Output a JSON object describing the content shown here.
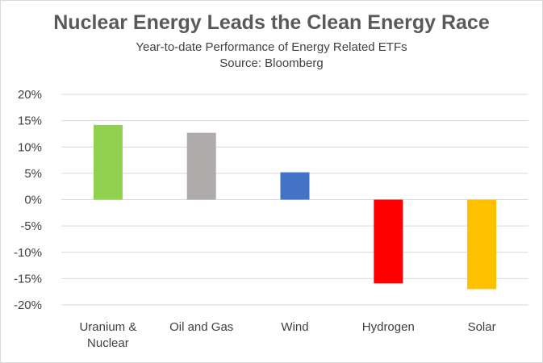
{
  "chart_data": {
    "type": "bar",
    "title": "Nuclear Energy Leads the Clean Energy Race",
    "subtitle": "Year-to-date Performance of Energy Related ETFs",
    "source": "Source: Bloomberg",
    "categories": [
      "Uranium & Nuclear",
      "Oil and Gas",
      "Wind",
      "Hydrogen",
      "Solar"
    ],
    "category_lines": [
      [
        "Uranium &",
        "Nuclear"
      ],
      [
        "Oil and Gas"
      ],
      [
        "Wind"
      ],
      [
        "Hydrogen"
      ],
      [
        "Solar"
      ]
    ],
    "values": [
      14.2,
      12.7,
      5.2,
      -15.9,
      -17.0
    ],
    "colors": [
      "#92d050",
      "#b0abab",
      "#4472c4",
      "#ff0000",
      "#ffc000"
    ],
    "ylim": [
      -20,
      20
    ],
    "yticks": [
      20,
      15,
      10,
      5,
      0,
      -5,
      -10,
      -15,
      -20
    ],
    "ytick_labels": [
      "20%",
      "15%",
      "10%",
      "5%",
      "0%",
      "-5%",
      "-10%",
      "-15%",
      "-20%"
    ],
    "grid": true,
    "gridline_color": "#d9d9d9"
  }
}
